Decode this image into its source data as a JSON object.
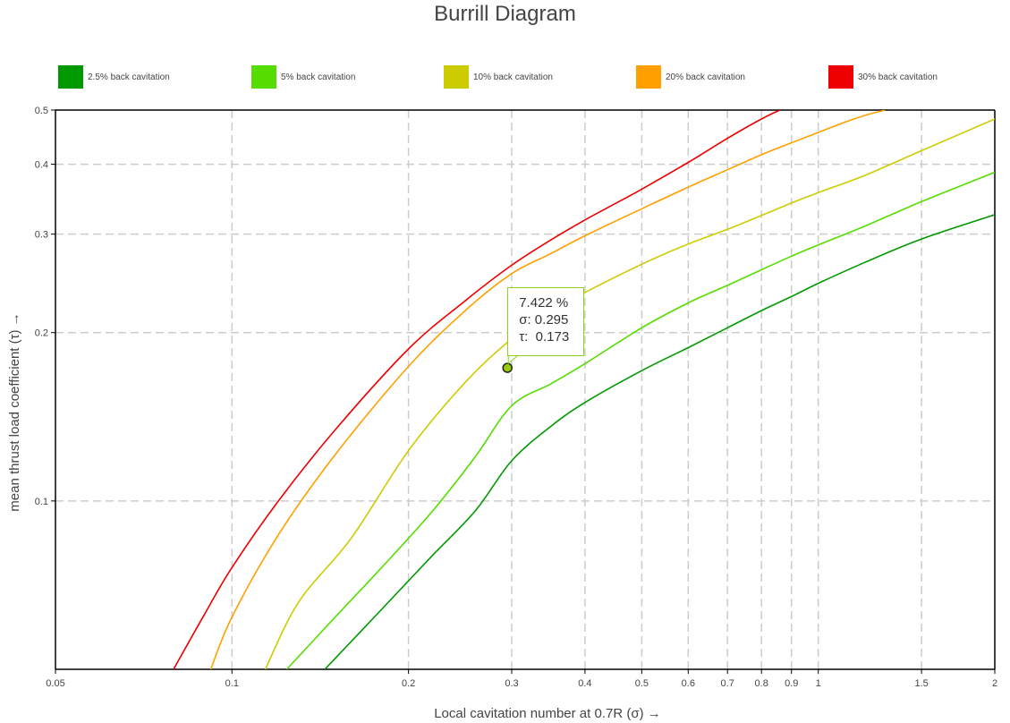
{
  "chart_data": {
    "type": "line",
    "title": "Burrill Diagram",
    "xlabel": "Local cavitation number at 0.7R (σ) →",
    "ylabel": "mean thrust load coefficient (τ) →",
    "x_scale": "log",
    "y_scale": "log",
    "xlim": [
      0.05,
      2
    ],
    "ylim": [
      0.05,
      0.5
    ],
    "x_ticks": [
      0.05,
      0.1,
      0.2,
      0.3,
      0.4,
      0.5,
      0.6,
      0.7,
      0.8,
      0.9,
      1,
      1.5,
      2
    ],
    "x_tick_labels": [
      "0.05",
      "0.1",
      "0.2",
      "0.3",
      "0.4",
      "0.5",
      "0.6",
      "0.7",
      "0.8",
      "0.9",
      "1",
      "1.5",
      "2"
    ],
    "y_ticks": [
      0.1,
      0.2,
      0.3,
      0.4,
      0.5
    ],
    "y_tick_labels": [
      "0.1",
      "0.2",
      "0.3",
      "0.4",
      "0.5"
    ],
    "grid": true,
    "legend_position": "top",
    "series": [
      {
        "name": "2.5% back cavitation",
        "color": "#009900",
        "x": [
          0.144,
          0.18,
          0.22,
          0.26,
          0.3,
          0.35,
          0.4,
          0.5,
          0.6,
          0.7,
          0.8,
          0.9,
          1.0,
          1.2,
          1.5,
          2.0
        ],
        "y": [
          0.05,
          0.064,
          0.08,
          0.096,
          0.118,
          0.136,
          0.15,
          0.171,
          0.188,
          0.204,
          0.219,
          0.232,
          0.245,
          0.267,
          0.294,
          0.325
        ]
      },
      {
        "name": "5% back cavitation",
        "color": "#55dd00",
        "x": [
          0.124,
          0.15,
          0.18,
          0.22,
          0.26,
          0.3,
          0.35,
          0.4,
          0.5,
          0.6,
          0.7,
          0.8,
          0.9,
          1.0,
          1.2,
          1.5,
          2.0
        ],
        "y": [
          0.05,
          0.062,
          0.076,
          0.096,
          0.12,
          0.148,
          0.162,
          0.176,
          0.204,
          0.226,
          0.243,
          0.259,
          0.274,
          0.287,
          0.31,
          0.343,
          0.387
        ]
      },
      {
        "name": "10% back cavitation",
        "color": "#cccc00",
        "x": [
          0.114,
          0.13,
          0.16,
          0.2,
          0.25,
          0.3,
          0.35,
          0.4,
          0.5,
          0.6,
          0.7,
          0.8,
          0.9,
          1.0,
          1.2,
          1.5,
          2.0
        ],
        "y": [
          0.05,
          0.066,
          0.086,
          0.123,
          0.163,
          0.195,
          0.218,
          0.236,
          0.265,
          0.288,
          0.306,
          0.324,
          0.341,
          0.356,
          0.382,
          0.423,
          0.482
        ]
      },
      {
        "name": "20% back cavitation",
        "color": "#ffa000",
        "x": [
          0.092,
          0.1,
          0.12,
          0.15,
          0.2,
          0.25,
          0.3,
          0.35,
          0.4,
          0.5,
          0.6,
          0.7,
          0.8,
          0.9,
          1.0,
          1.1,
          1.2,
          1.3
        ],
        "y": [
          0.05,
          0.062,
          0.087,
          0.121,
          0.174,
          0.219,
          0.255,
          0.277,
          0.298,
          0.333,
          0.364,
          0.391,
          0.416,
          0.437,
          0.456,
          0.474,
          0.489,
          0.5
        ]
      },
      {
        "name": "30% back cavitation",
        "color": "#ee0000",
        "x": [
          0.0795,
          0.09,
          0.1,
          0.12,
          0.15,
          0.2,
          0.25,
          0.3,
          0.35,
          0.4,
          0.45,
          0.5,
          0.6,
          0.7,
          0.8,
          0.86
        ],
        "y": [
          0.05,
          0.063,
          0.076,
          0.1,
          0.134,
          0.187,
          0.228,
          0.264,
          0.293,
          0.318,
          0.34,
          0.361,
          0.403,
          0.445,
          0.482,
          0.5
        ]
      }
    ],
    "marker": {
      "x": 0.295,
      "y": 0.173,
      "fill": "#99cc00"
    }
  },
  "tooltip": {
    "line1": "7.422 %",
    "line2": "σ: 0.295",
    "line3": "τ:  0.173"
  }
}
